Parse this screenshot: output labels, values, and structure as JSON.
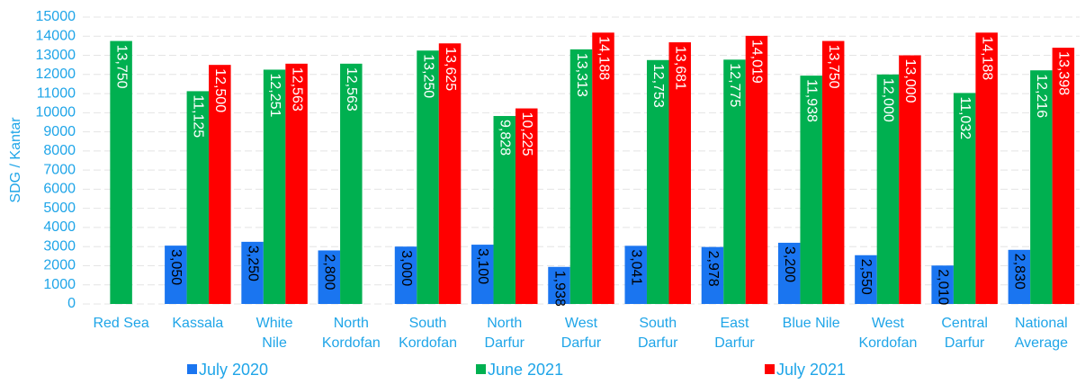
{
  "chart_data": {
    "type": "bar",
    "y_label": "SDG / Kantar",
    "categories": [
      "Red Sea",
      "Kassala",
      "White Nile",
      "North Kordofan",
      "South Kordofan",
      "North Darfur",
      "West Darfur",
      "South Darfur",
      "East Darfur",
      "Blue Nile",
      "West Kordofan",
      "Central Darfur",
      "National Average"
    ],
    "series": [
      {
        "name": "July 2020",
        "color": "#1a75f0",
        "label_color": "#000000",
        "values": [
          null,
          3050,
          3250,
          2800,
          3000,
          3100,
          1938,
          3041,
          2978,
          3200,
          2550,
          2010,
          2830
        ],
        "value_labels": [
          null,
          "3,050",
          "3,250",
          "2,800",
          "3,000",
          "3,100",
          "1,938",
          "3,041",
          "2,978",
          "3,200",
          "2,550",
          "2,010",
          "2,830"
        ]
      },
      {
        "name": "June 2021",
        "color": "#00b050",
        "label_color": "#ffffff",
        "values": [
          13750,
          11125,
          12251,
          12563,
          13250,
          9828,
          13313,
          12753,
          12775,
          11938,
          12000,
          11032,
          12216
        ],
        "value_labels": [
          "13,750",
          "11,125",
          "12,251",
          "12,563",
          "13,250",
          "9,828",
          "13,313",
          "12,753",
          "12,775",
          "11,938",
          "12,000",
          "11,032",
          "12,216"
        ]
      },
      {
        "name": "July 2021",
        "color": "#ff0000",
        "label_color": "#ffffff",
        "values": [
          null,
          12500,
          12563,
          null,
          13625,
          10225,
          14188,
          13681,
          14019,
          13750,
          13000,
          14188,
          13398
        ],
        "value_labels": [
          null,
          "12,500",
          "12,563",
          null,
          "13,625",
          "10,225",
          "14,188",
          "13,681",
          "14,019",
          "13,750",
          "13,000",
          "14,188",
          "13,398"
        ]
      }
    ],
    "ylim": [
      0,
      15000
    ],
    "yticks": [
      0,
      1000,
      2000,
      3000,
      4000,
      5000,
      6000,
      7000,
      8000,
      9000,
      10000,
      11000,
      12000,
      13000,
      14000,
      15000
    ],
    "grid": true,
    "legend": "bottom"
  }
}
